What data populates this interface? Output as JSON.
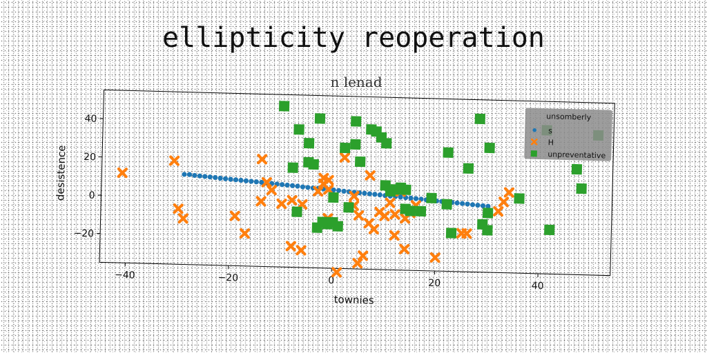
{
  "chart_data": {
    "type": "scatter",
    "title": "ellipticity reoperation",
    "subtitle": "n lenad",
    "xlabel": "townies",
    "ylabel": "desistence",
    "xlim": [
      -45,
      54
    ],
    "ylim": [
      -35,
      55
    ],
    "xticks": [
      -40,
      -20,
      0,
      20,
      40
    ],
    "yticks": [
      -20,
      0,
      20,
      40
    ],
    "grid": false,
    "legend": {
      "title": "unsomberly",
      "placement": "top-right"
    },
    "series": [
      {
        "name": "s",
        "marker": "circle",
        "color": "#1f77b4",
        "points": [
          [
            -29,
            12
          ],
          [
            -28,
            12
          ],
          [
            -27,
            11.6
          ],
          [
            -26,
            11.4
          ],
          [
            -25,
            11.2
          ],
          [
            -24,
            11
          ],
          [
            -23,
            10.8
          ],
          [
            -22,
            10.5
          ],
          [
            -21,
            10.3
          ],
          [
            -20,
            10.1
          ],
          [
            -19,
            9.9
          ],
          [
            -18,
            9.7
          ],
          [
            -17,
            9.5
          ],
          [
            -16,
            9.3
          ],
          [
            -15,
            9.1
          ],
          [
            -14,
            8.9
          ],
          [
            -13,
            8.6
          ],
          [
            -12,
            8.4
          ],
          [
            -11,
            8.2
          ],
          [
            -10,
            8
          ],
          [
            -9,
            7.8
          ],
          [
            -8,
            7.6
          ],
          [
            -7,
            7.4
          ],
          [
            -6,
            7.1
          ],
          [
            -5,
            6.9
          ],
          [
            -4,
            6.7
          ],
          [
            -3,
            6.5
          ],
          [
            -2,
            6.3
          ],
          [
            -1,
            6.1
          ],
          [
            0,
            5.9
          ],
          [
            1,
            5.7
          ],
          [
            2,
            5.4
          ],
          [
            3,
            5.2
          ],
          [
            4,
            5
          ],
          [
            5,
            4.8
          ],
          [
            6,
            4.6
          ],
          [
            7,
            4.4
          ],
          [
            8,
            4.2
          ],
          [
            9,
            4
          ],
          [
            10,
            3.7
          ],
          [
            11,
            3.5
          ],
          [
            12,
            3.3
          ],
          [
            13,
            3.1
          ],
          [
            14,
            2.9
          ],
          [
            15,
            2.7
          ],
          [
            16,
            2.5
          ],
          [
            17,
            2.3
          ],
          [
            18,
            2
          ],
          [
            19,
            1.8
          ],
          [
            20,
            1.6
          ],
          [
            21,
            1.4
          ],
          [
            22,
            1.2
          ],
          [
            23,
            1
          ],
          [
            24,
            0.8
          ],
          [
            25,
            0.6
          ],
          [
            26,
            0.4
          ],
          [
            27,
            0.1
          ],
          [
            28,
            -0.1
          ],
          [
            29,
            -0.3
          ],
          [
            30,
            -0.5
          ]
        ]
      },
      {
        "name": "H",
        "marker": "x",
        "color": "#ff7f0e",
        "points": [
          [
            -41,
            12
          ],
          [
            -31,
            19
          ],
          [
            -30,
            -6
          ],
          [
            -29,
            -11
          ],
          [
            -19,
            -9
          ],
          [
            -17,
            -18
          ],
          [
            -14,
            21
          ],
          [
            -14,
            -1
          ],
          [
            -13,
            9
          ],
          [
            -12,
            5
          ],
          [
            -10,
            -2
          ],
          [
            -8,
            -24
          ],
          [
            -8,
            0
          ],
          [
            -6,
            -26
          ],
          [
            -6,
            -2
          ],
          [
            -3,
            5
          ],
          [
            -2,
            9
          ],
          [
            -2,
            12
          ],
          [
            -1,
            11
          ],
          [
            -1,
            6
          ],
          [
            -1,
            -9
          ],
          [
            1,
            -37
          ],
          [
            2,
            23
          ],
          [
            4,
            3
          ],
          [
            4,
            -2
          ],
          [
            5,
            -7
          ],
          [
            5,
            -32
          ],
          [
            6,
            -28
          ],
          [
            7,
            14
          ],
          [
            7,
            -11
          ],
          [
            8,
            -14
          ],
          [
            9,
            -5
          ],
          [
            10,
            -7
          ],
          [
            11,
            0
          ],
          [
            12,
            -6
          ],
          [
            12,
            -17
          ],
          [
            13,
            6
          ],
          [
            14,
            -8
          ],
          [
            14,
            -24
          ],
          [
            15,
            -5
          ],
          [
            16,
            -1
          ],
          [
            20,
            -28
          ],
          [
            23,
            -15
          ],
          [
            25,
            -15
          ],
          [
            26,
            -15
          ],
          [
            32,
            -3
          ],
          [
            33,
            2
          ],
          [
            34,
            7
          ]
        ]
      },
      {
        "name": "unpreventative",
        "marker": "square",
        "color": "#2ca02c",
        "points": [
          [
            -10,
            49
          ],
          [
            -7,
            37
          ],
          [
            -5,
            30
          ],
          [
            -5,
            20
          ],
          [
            -4,
            19
          ],
          [
            -8,
            17
          ],
          [
            -7,
            -6
          ],
          [
            -3,
            -14
          ],
          [
            -2,
            -11
          ],
          [
            -1,
            -12
          ],
          [
            -3,
            43
          ],
          [
            -2,
            -11
          ],
          [
            0,
            -11
          ],
          [
            0,
            2
          ],
          [
            1,
            -13
          ],
          [
            2,
            28
          ],
          [
            3,
            -3
          ],
          [
            4,
            42
          ],
          [
            4,
            30
          ],
          [
            5,
            21
          ],
          [
            7,
            38
          ],
          [
            8,
            37
          ],
          [
            9,
            34
          ],
          [
            10,
            31
          ],
          [
            10,
            9
          ],
          [
            11,
            6
          ],
          [
            12,
            7
          ],
          [
            13,
            8
          ],
          [
            14,
            7
          ],
          [
            14,
            -3
          ],
          [
            15,
            -4
          ],
          [
            17,
            -4
          ],
          [
            19,
            3
          ],
          [
            22,
            27
          ],
          [
            22,
            0
          ],
          [
            23,
            -15
          ],
          [
            26,
            19
          ],
          [
            28,
            45
          ],
          [
            29,
            -10
          ],
          [
            30,
            30
          ],
          [
            30,
            -13
          ],
          [
            30,
            -4
          ],
          [
            36,
            4
          ],
          [
            41,
            40
          ],
          [
            42,
            -12
          ],
          [
            48,
            10
          ],
          [
            47,
            20
          ],
          [
            51,
            38
          ]
        ]
      }
    ]
  }
}
